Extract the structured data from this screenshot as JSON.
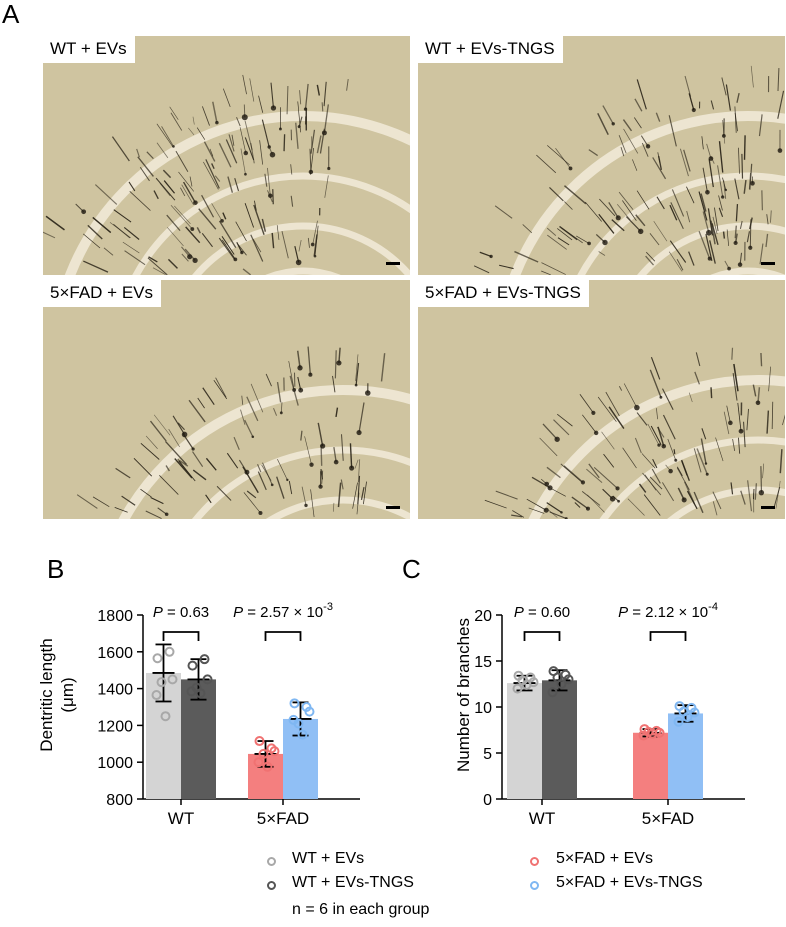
{
  "panels": {
    "a_letter": "A",
    "b_letter": "B",
    "c_letter": "C"
  },
  "micrographs": [
    {
      "label": "WT + EVs"
    },
    {
      "label": "WT + EVs-TNGS"
    },
    {
      "label": "5×FAD + EVs"
    },
    {
      "label": "5×FAD + EVs-TNGS"
    }
  ],
  "colors": {
    "wt_evs": "#d4d4d4",
    "wt_evs_tngs": "#5b5b5b",
    "fad_evs": "#f47f7f",
    "fad_evs_tngs": "#90bff5",
    "wt_evs_point": "#a8a8a8",
    "wt_evs_tngs_point": "#555555",
    "fad_evs_point": "#f07272",
    "fad_evs_tngs_point": "#7fb7f2",
    "tissue": "#cfc4a0"
  },
  "chart_data": [
    {
      "type": "bar",
      "panel": "B",
      "categories": [
        "WT",
        "5×FAD"
      ],
      "ylabel": "Dentritic length",
      "ylabel_unit": "(μm)",
      "ylim": [
        800,
        1800
      ],
      "yticks": [
        800,
        1000,
        1200,
        1400,
        1600,
        1800
      ],
      "series": [
        {
          "name": "WT + EVs",
          "group": 0,
          "value": 1485,
          "sd": 155,
          "points": [
            1565,
            1600,
            1450,
            1365,
            1250,
            1435
          ]
        },
        {
          "name": "WT + EVs-TNGS",
          "group": 0,
          "value": 1450,
          "sd": 110,
          "points": [
            1525,
            1560,
            1450,
            1385,
            1375,
            1405
          ]
        },
        {
          "name": "5×FAD + EVs",
          "group": 1,
          "value": 1045,
          "sd": 70,
          "points": [
            1115,
            1075,
            1060,
            1000,
            975,
            1045
          ]
        },
        {
          "name": "5×FAD + EVs-TNGS",
          "group": 1,
          "value": 1235,
          "sd": 90,
          "points": [
            1320,
            1300,
            1275,
            1230,
            1150,
            1210
          ]
        }
      ],
      "comparisons": [
        {
          "group": 0,
          "label_prefix": "P",
          "label_value": " = 0.63",
          "exponent": ""
        },
        {
          "group": 1,
          "label_prefix": "P",
          "label_value": " = 2.57 × 10",
          "exponent": "-3"
        }
      ]
    },
    {
      "type": "bar",
      "panel": "C",
      "categories": [
        "WT",
        "5×FAD"
      ],
      "ylabel": "Number of branches",
      "ylim": [
        0,
        20
      ],
      "yticks": [
        0,
        5,
        10,
        15,
        20
      ],
      "series": [
        {
          "name": "WT + EVs",
          "group": 0,
          "value": 12.6,
          "sd": 0.8,
          "points": [
            13.4,
            13.2,
            12.7,
            12.0,
            12.4,
            12.9
          ]
        },
        {
          "name": "WT + EVs-TNGS",
          "group": 0,
          "value": 12.9,
          "sd": 1.1,
          "points": [
            13.9,
            13.5,
            13.0,
            11.6,
            12.5,
            13.2
          ]
        },
        {
          "name": "5×FAD + EVs",
          "group": 1,
          "value": 7.2,
          "sd": 0.4,
          "points": [
            7.6,
            7.4,
            7.2,
            6.9,
            7.1,
            7.3
          ]
        },
        {
          "name": "5×FAD + EVs-TNGS",
          "group": 1,
          "value": 9.3,
          "sd": 0.9,
          "points": [
            10.1,
            9.9,
            9.4,
            8.4,
            8.9,
            9.5
          ]
        }
      ],
      "comparisons": [
        {
          "group": 0,
          "label_prefix": "P",
          "label_value": " = 0.60",
          "exponent": ""
        },
        {
          "group": 1,
          "label_prefix": "P",
          "label_value": " = 2.12 × 10",
          "exponent": "-4"
        }
      ]
    }
  ],
  "legend": {
    "items": [
      {
        "label": "WT + EVs"
      },
      {
        "label": "WT + EVs-TNGS"
      },
      {
        "label": "5×FAD + EVs"
      },
      {
        "label": "5×FAD + EVs-TNGS"
      }
    ],
    "note": "n = 6 in each group"
  }
}
